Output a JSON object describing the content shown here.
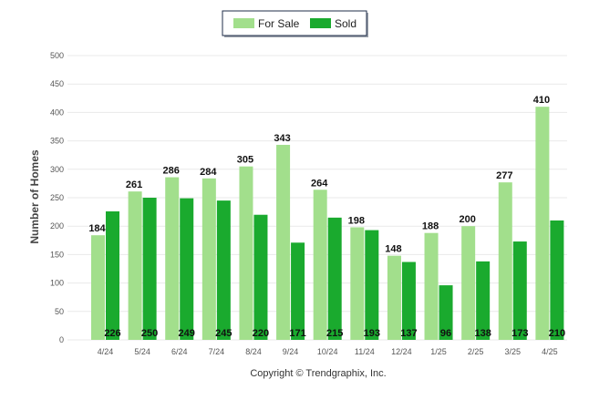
{
  "chart_data": {
    "type": "bar",
    "categories": [
      "4/24",
      "5/24",
      "6/24",
      "7/24",
      "8/24",
      "9/24",
      "10/24",
      "11/24",
      "12/24",
      "1/25",
      "2/25",
      "3/25",
      "4/25"
    ],
    "series": [
      {
        "name": "For Sale",
        "color": "#a2df8c",
        "values": [
          184,
          261,
          286,
          284,
          305,
          343,
          264,
          198,
          148,
          188,
          200,
          277,
          410
        ]
      },
      {
        "name": "Sold",
        "color": "#1aaa2e",
        "values": [
          226,
          250,
          249,
          245,
          220,
          171,
          215,
          193,
          137,
          96,
          138,
          173,
          210
        ]
      }
    ],
    "ylabel": "Number of Homes",
    "xlabel": "",
    "ylim": [
      0,
      500
    ],
    "yticks": [
      0,
      50,
      100,
      150,
      200,
      250,
      300,
      350,
      400,
      450,
      500
    ],
    "grid": true,
    "legend": "top-center",
    "data_labels": {
      "For Sale": "above-bar",
      "Sold": "inside-bar-bottom"
    }
  },
  "footer": {
    "copyright": "Copyright © Trendgraphix, Inc."
  }
}
